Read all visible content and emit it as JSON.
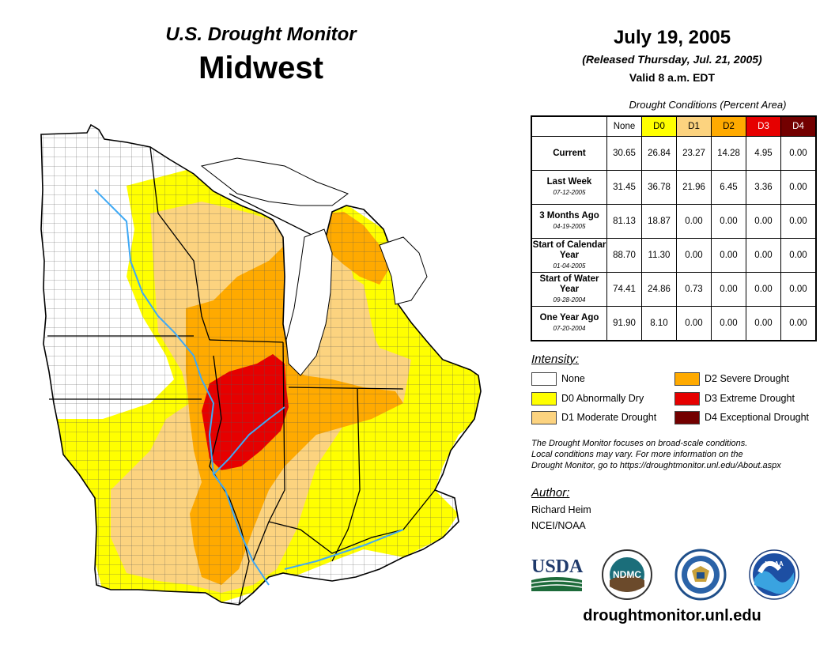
{
  "header": {
    "program": "U.S. Drought Monitor",
    "region": "Midwest",
    "date": "July 19, 2005",
    "released": "(Released Thursday, Jul. 21, 2005)",
    "valid": "Valid 8 a.m. EDT"
  },
  "table": {
    "caption": "Drought Conditions (Percent Area)",
    "columns": [
      "None",
      "D0",
      "D1",
      "D2",
      "D3",
      "D4"
    ],
    "column_colors": [
      "#ffffff",
      "#ffff00",
      "#fcd37f",
      "#ffaa00",
      "#e60000",
      "#730000"
    ],
    "rows": [
      {
        "label": "Current",
        "date": "",
        "values": [
          "30.65",
          "26.84",
          "23.27",
          "14.28",
          "4.95",
          "0.00"
        ]
      },
      {
        "label": "Last Week",
        "date": "07-12-2005",
        "values": [
          "31.45",
          "36.78",
          "21.96",
          "6.45",
          "3.36",
          "0.00"
        ]
      },
      {
        "label": "3 Months Ago",
        "date": "04-19-2005",
        "values": [
          "81.13",
          "18.87",
          "0.00",
          "0.00",
          "0.00",
          "0.00"
        ]
      },
      {
        "label": "Start of Calendar Year",
        "date": "01-04-2005",
        "values": [
          "88.70",
          "11.30",
          "0.00",
          "0.00",
          "0.00",
          "0.00"
        ]
      },
      {
        "label": "Start of Water Year",
        "date": "09-28-2004",
        "values": [
          "74.41",
          "24.86",
          "0.73",
          "0.00",
          "0.00",
          "0.00"
        ]
      },
      {
        "label": "One Year Ago",
        "date": "07-20-2004",
        "values": [
          "91.90",
          "8.10",
          "0.00",
          "0.00",
          "0.00",
          "0.00"
        ]
      }
    ]
  },
  "legend": {
    "title": "Intensity:",
    "items": [
      {
        "label": "None",
        "color": "#ffffff"
      },
      {
        "label": "D0 Abnormally Dry",
        "color": "#ffff00"
      },
      {
        "label": "D1 Moderate Drought",
        "color": "#fcd37f"
      },
      {
        "label": "D2 Severe Drought",
        "color": "#ffaa00"
      },
      {
        "label": "D3 Extreme Drought",
        "color": "#e60000"
      },
      {
        "label": "D4 Exceptional Drought",
        "color": "#730000"
      }
    ]
  },
  "note": {
    "line1": "The Drought Monitor focuses on broad-scale conditions.",
    "line2": "Local conditions may vary. For more information on the",
    "line3": "Drought Monitor, go to https://droughtmonitor.unl.edu/About.aspx"
  },
  "author": {
    "heading": "Author:",
    "name": "Richard Heim",
    "org": "NCEI/NOAA"
  },
  "logos": {
    "usda": "USDA",
    "ndmc": "NDMC",
    "noaa": "NOAA"
  },
  "footer": {
    "site": "droughtmonitor.unl.edu"
  },
  "map": {
    "colors": {
      "none": "#ffffff",
      "d0": "#ffff00",
      "d1": "#fcd37f",
      "d2": "#ffaa00",
      "d3": "#e60000",
      "water": "#3fa9f5",
      "lake": "#ffffff"
    }
  }
}
